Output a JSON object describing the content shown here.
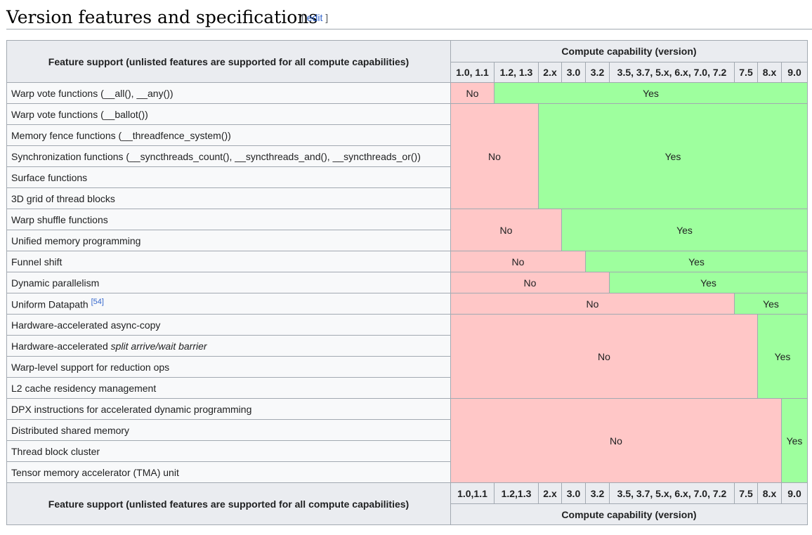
{
  "heading": {
    "title": "Version features and specifications",
    "edit_open": "[ ",
    "edit_label": "edit",
    "edit_close": " ]"
  },
  "table": {
    "feature_header": "Feature support (unlisted features are supported for all compute capabilities)",
    "cc_header": "Compute capability (version)",
    "versions_top": [
      "1.0, 1.1",
      "1.2, 1.3",
      "2.x",
      "3.0",
      "3.2",
      "3.5, 3.7, 5.x, 6.x, 7.0, 7.2",
      "7.5",
      "8.x",
      "9.0"
    ],
    "versions_bottom": [
      "1.0,1.1",
      "1.2,1.3",
      "2.x",
      "3.0",
      "3.2",
      "3.5, 3.7, 5.x, 6.x, 7.0, 7.2",
      "7.5",
      "8.x",
      "9.0"
    ],
    "features": [
      "Warp vote functions (__all(), __any())",
      "Warp vote functions (__ballot())",
      "Memory fence functions (__threadfence_system())",
      "Synchronization functions (__syncthreads_count(), __syncthreads_and(), __syncthreads_or())",
      "Surface functions",
      "3D grid of thread blocks",
      "Warp shuffle functions",
      "Unified memory programming",
      "Funnel shift",
      "Dynamic parallelism",
      "Uniform Datapath",
      "Hardware-accelerated async-copy",
      "Hardware-accelerated ",
      "Warp-level support for reduction ops",
      "L2 cache residency management",
      "DPX instructions for accelerated dynamic programming",
      "Distributed shared memory",
      "Thread block cluster",
      "Tensor memory accelerator (TMA) unit"
    ],
    "feature_12_italic": "split arrive/wait barrier",
    "uniform_ref": "[54]",
    "no": "No",
    "yes": "Yes"
  },
  "colors": {
    "no": "#ffc7c7",
    "yes": "#9eff9e",
    "header": "#eaecf0",
    "link": "#3366cc"
  }
}
